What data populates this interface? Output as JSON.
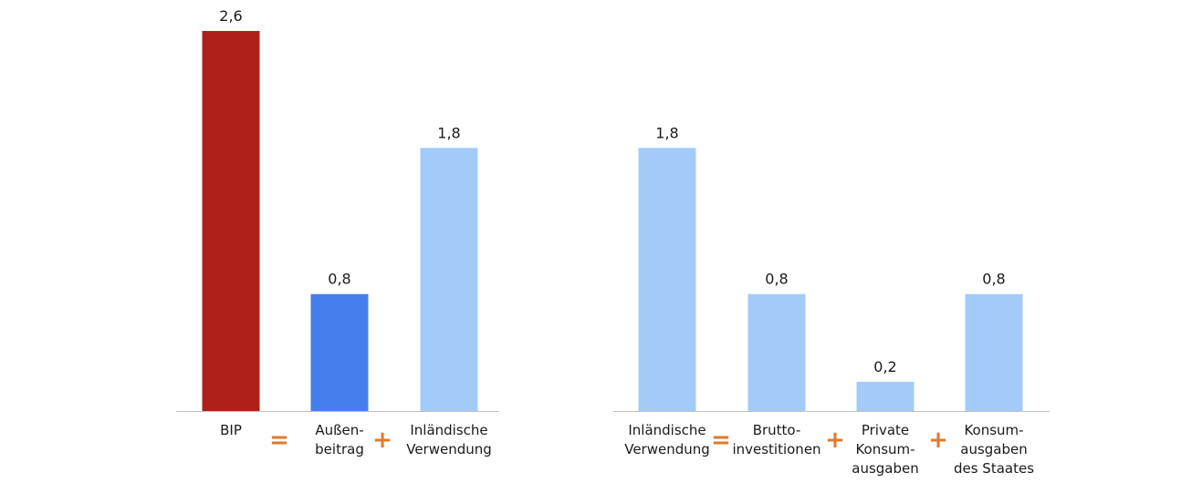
{
  "chart_data": [
    {
      "type": "bar",
      "categories": [
        "BIP",
        "Außen-\nbeitrag",
        "Inländische\nVerwendung"
      ],
      "values": [
        2.6,
        0.8,
        1.8
      ],
      "value_labels": [
        "2,6",
        "0,8",
        "1,8"
      ],
      "colors": [
        "#ae2118",
        "#477eed",
        "#a3cbfa"
      ],
      "operators": [
        "=",
        "+"
      ],
      "ylim": [
        0,
        2.6
      ],
      "grid": false
    },
    {
      "type": "bar",
      "categories": [
        "Inländische\nVerwendung",
        "Brutto-\ninvestitionen",
        "Private\nKonsum-\nausgaben",
        "Konsum-\nausgaben\ndes Staates"
      ],
      "values": [
        1.8,
        0.8,
        0.2,
        0.8
      ],
      "value_labels": [
        "1,8",
        "0,8",
        "0,2",
        "0,8"
      ],
      "colors": [
        "#a3cbfa",
        "#a3cbfa",
        "#a3cbfa",
        "#a3cbfa"
      ],
      "operators": [
        "=",
        "+",
        "+"
      ],
      "ylim": [
        0,
        2.6
      ],
      "grid": false
    }
  ],
  "colors": {
    "operator": "#e07a2a",
    "axis": "#bfbfbf"
  }
}
